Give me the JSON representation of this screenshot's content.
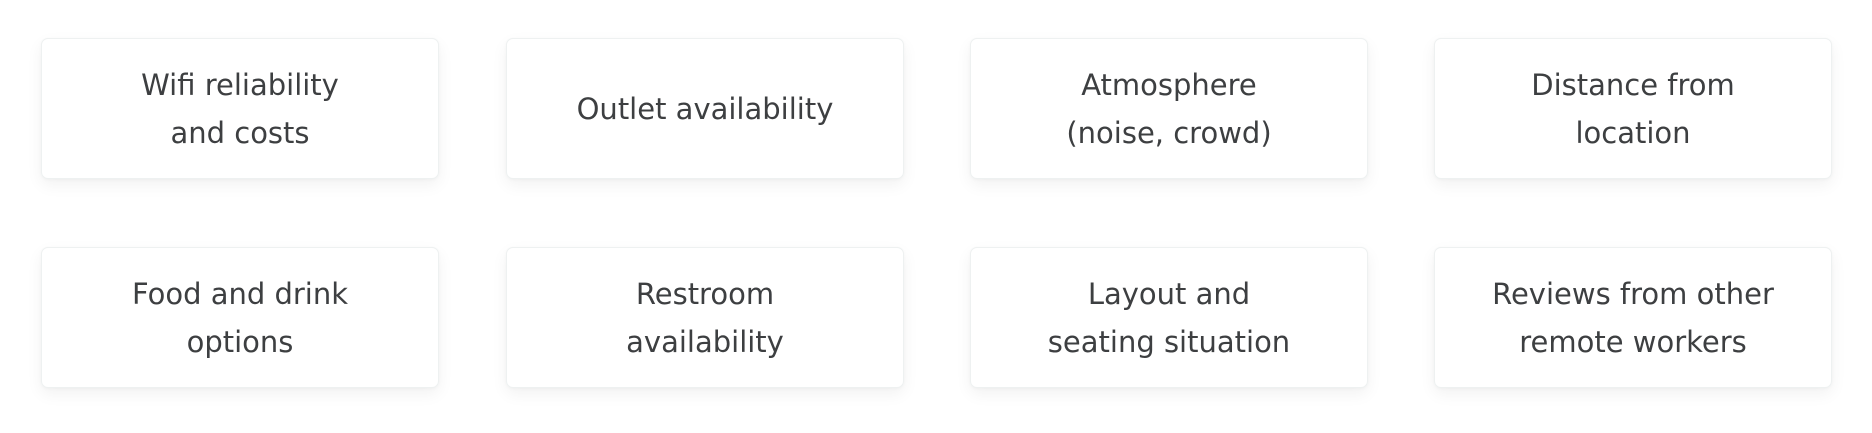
{
  "cards": [
    {
      "label": "Wifi reliability\nand costs"
    },
    {
      "label": "Outlet availability"
    },
    {
      "label": "Atmosphere\n(noise, crowd)"
    },
    {
      "label": "Distance from\nlocation"
    },
    {
      "label": "Food and drink\noptions"
    },
    {
      "label": "Restroom\navailability"
    },
    {
      "label": "Layout and\nseating situation"
    },
    {
      "label": "Reviews from other\nremote workers"
    }
  ]
}
